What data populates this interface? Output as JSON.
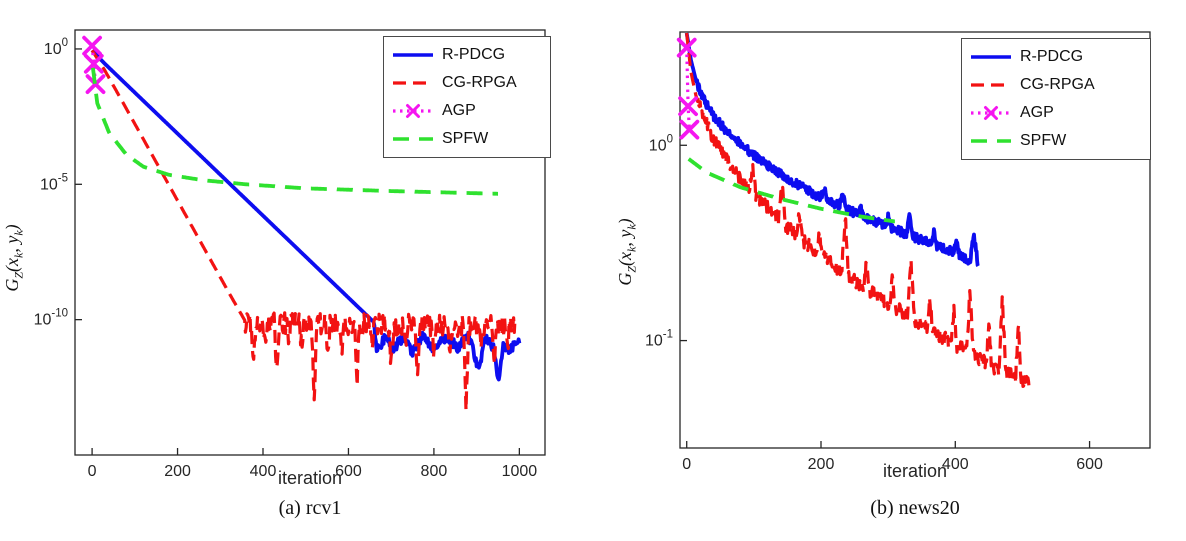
{
  "figure": {
    "captions": [
      "(a) rcv1",
      "(b) news20"
    ]
  },
  "chart_data": [
    {
      "type": "line",
      "title": "(a) rcv1",
      "xlabel": "iteration",
      "ylabel": "G_Z(x_k, y_k)",
      "ylabel_parts": {
        "g": "G",
        "gsub": "Z",
        "open": "(",
        "x": "x",
        "xsub": "k",
        "comma": ", ",
        "y": "y",
        "ysub": "k",
        "close": ")"
      },
      "grid": false,
      "x_axis": {
        "lim": [
          -40,
          1060
        ],
        "ticks": [
          0,
          200,
          400,
          600,
          800,
          1000
        ]
      },
      "y_axis": {
        "scale": "log",
        "lim_log10": [
          -15,
          0.7
        ],
        "ticks": [
          {
            "base": "10",
            "exp": "0",
            "log10": 0
          },
          {
            "base": "10",
            "exp": "-5",
            "log10": -5
          },
          {
            "base": "10",
            "exp": "-10",
            "log10": -10
          }
        ]
      },
      "legend": {
        "position": "top-right",
        "entries": [
          "R-PDCG",
          "CG-RPGA",
          "AGP",
          "SPFW"
        ]
      },
      "series": [
        {
          "name": "R-PDCG",
          "color": "#0d0df0",
          "line": "solid",
          "width": 3.8,
          "points_x_log10y": [
            [
              0,
              -0.05
            ],
            [
              30,
              -0.55
            ],
            [
              660,
              -10.1
            ],
            [
              666,
              -11.15
            ],
            [
              690,
              -10.55
            ],
            [
              705,
              -11.1
            ],
            [
              730,
              -10.6
            ],
            [
              750,
              -11.25
            ],
            [
              775,
              -10.55
            ],
            [
              800,
              -11.15
            ],
            [
              830,
              -10.6
            ],
            [
              855,
              -11.05
            ],
            [
              880,
              -10.5
            ],
            [
              905,
              -11.9
            ],
            [
              920,
              -10.7
            ],
            [
              940,
              -11.0
            ],
            [
              952,
              -12.35
            ],
            [
              962,
              -10.9
            ],
            [
              975,
              -11.1
            ],
            [
              1000,
              -10.85
            ]
          ],
          "noise": [
            [
              662,
              1000,
              0.18
            ]
          ],
          "spikes": []
        },
        {
          "name": "CG-RPGA",
          "color": "#f21212",
          "line": "dashed",
          "width": 3.2,
          "points_x_log10y": [
            [
              0,
              -0.05
            ],
            [
              30,
              -0.8
            ],
            [
              80,
              -2.2
            ],
            [
              140,
              -3.9
            ],
            [
              200,
              -5.6
            ],
            [
              260,
              -7.3
            ],
            [
              320,
              -9.0
            ],
            [
              360,
              -10.1
            ],
            [
              990,
              -10.25
            ]
          ],
          "noise": [
            [
              358,
              990,
              0.4
            ]
          ],
          "spikes": [
            [
              378,
              -1.3,
              6
            ],
            [
              405,
              -0.9,
              5
            ],
            [
              432,
              -1.5,
              6
            ],
            [
              460,
              -1.0,
              5
            ],
            [
              490,
              -0.8,
              5
            ],
            [
              520,
              -2.6,
              6
            ],
            [
              552,
              -1.0,
              5
            ],
            [
              585,
              -1.2,
              5
            ],
            [
              620,
              -2.1,
              6
            ],
            [
              655,
              -0.9,
              5
            ],
            [
              700,
              -1.5,
              6
            ],
            [
              735,
              -1.0,
              5
            ],
            [
              762,
              -1.9,
              6
            ],
            [
              800,
              -1.1,
              5
            ],
            [
              838,
              -0.9,
              5
            ],
            [
              875,
              -3.1,
              6
            ],
            [
              910,
              -1.0,
              5
            ],
            [
              942,
              -1.3,
              5
            ],
            [
              972,
              -0.9,
              5
            ]
          ]
        },
        {
          "name": "AGP",
          "color": "#f515f0",
          "line": "dotted",
          "width": 3.2,
          "marker": "x",
          "markers_x_log10y": [
            [
              0,
              0.12
            ],
            [
              4,
              -0.55
            ],
            [
              8,
              -1.3
            ]
          ]
        },
        {
          "name": "SPFW",
          "color": "#2fe12f",
          "line": "dashed",
          "width": 3.8,
          "dash": "16 10",
          "points_x_log10y": [
            [
              2,
              -0.7
            ],
            [
              12,
              -2.0
            ],
            [
              40,
              -3.1
            ],
            [
              80,
              -3.9
            ],
            [
              120,
              -4.35
            ],
            [
              180,
              -4.65
            ],
            [
              260,
              -4.85
            ],
            [
              360,
              -5.0
            ],
            [
              500,
              -5.15
            ],
            [
              700,
              -5.25
            ],
            [
              950,
              -5.35
            ]
          ],
          "noise": [],
          "spikes": []
        }
      ]
    },
    {
      "type": "line",
      "title": "(b) news20",
      "xlabel": "iteration",
      "ylabel": "G_Z(x_k, y_k)",
      "ylabel_parts": {
        "g": "G",
        "gsub": "Z",
        "open": "(",
        "x": "x",
        "xsub": "k",
        "comma": ", ",
        "y": "y",
        "ysub": "k",
        "close": ")"
      },
      "grid": false,
      "x_axis": {
        "lim": [
          -10,
          690
        ],
        "ticks": [
          0,
          200,
          400,
          600
        ]
      },
      "y_axis": {
        "scale": "log",
        "lim_log10": [
          -1.55,
          0.58
        ],
        "ticks": [
          {
            "base": "10",
            "exp": "0",
            "log10": 0
          },
          {
            "base": "10",
            "exp": "-1",
            "log10": -1
          }
        ]
      },
      "legend": {
        "position": "top-right",
        "entries": [
          "R-PDCG",
          "CG-RPGA",
          "AGP",
          "SPFW"
        ]
      },
      "series": [
        {
          "name": "R-PDCG",
          "color": "#0d0df0",
          "line": "solid",
          "width": 3.8,
          "points_x_log10y": [
            [
              0,
              0.575
            ],
            [
              6,
              0.44
            ],
            [
              14,
              0.33
            ],
            [
              25,
              0.24
            ],
            [
              40,
              0.15
            ],
            [
              60,
              0.07
            ],
            [
              85,
              -0.01
            ],
            [
              115,
              -0.09
            ],
            [
              150,
              -0.17
            ],
            [
              190,
              -0.25
            ],
            [
              230,
              -0.315
            ],
            [
              270,
              -0.375
            ],
            [
              310,
              -0.43
            ],
            [
              350,
              -0.485
            ],
            [
              385,
              -0.53
            ],
            [
              410,
              -0.565
            ],
            [
              422,
              -0.59
            ],
            [
              428,
              -0.46
            ],
            [
              434,
              -0.63
            ]
          ],
          "noise": [
            [
              15,
              434,
              0.022
            ]
          ],
          "spikes": [
            [
              205,
              0.05,
              5
            ],
            [
              232,
              0.07,
              5
            ],
            [
              258,
              0.06,
              4
            ],
            [
              300,
              0.05,
              4
            ],
            [
              332,
              0.1,
              5
            ],
            [
              368,
              0.07,
              4
            ],
            [
              402,
              0.06,
              4
            ]
          ]
        },
        {
          "name": "CG-RPGA",
          "color": "#f21212",
          "line": "dashed",
          "width": 3.2,
          "points_x_log10y": [
            [
              0,
              0.575
            ],
            [
              6,
              0.38
            ],
            [
              14,
              0.25
            ],
            [
              25,
              0.14
            ],
            [
              40,
              0.03
            ],
            [
              60,
              -0.08
            ],
            [
              85,
              -0.19
            ],
            [
              115,
              -0.3
            ],
            [
              150,
              -0.42
            ],
            [
              190,
              -0.54
            ],
            [
              230,
              -0.645
            ],
            [
              270,
              -0.74
            ],
            [
              310,
              -0.83
            ],
            [
              350,
              -0.915
            ],
            [
              390,
              -1.0
            ],
            [
              430,
              -1.08
            ],
            [
              465,
              -1.15
            ],
            [
              490,
              -1.19
            ],
            [
              510,
              -1.21
            ]
          ],
          "noise": [
            [
              15,
              510,
              0.035
            ]
          ],
          "spikes": [
            [
              98,
              0.12,
              5
            ],
            [
              142,
              0.2,
              5
            ],
            [
              168,
              0.13,
              4
            ],
            [
              198,
              0.12,
              4
            ],
            [
              236,
              0.3,
              5
            ],
            [
              268,
              0.16,
              4
            ],
            [
              306,
              0.14,
              4
            ],
            [
              334,
              0.27,
              5
            ],
            [
              362,
              0.16,
              4
            ],
            [
              398,
              0.18,
              4
            ],
            [
              422,
              0.32,
              5
            ],
            [
              450,
              0.2,
              4
            ],
            [
              470,
              0.37,
              5
            ],
            [
              494,
              0.3,
              4
            ]
          ]
        },
        {
          "name": "AGP",
          "color": "#f515f0",
          "line": "dotted",
          "width": 3.2,
          "marker": "x",
          "markers_x_log10y": [
            [
              0,
              0.5
            ],
            [
              2,
              0.2
            ],
            [
              4,
              0.08
            ]
          ]
        },
        {
          "name": "SPFW",
          "color": "#2fe12f",
          "line": "dashed",
          "width": 3.8,
          "dash": "16 10",
          "points_x_log10y": [
            [
              3,
              -0.07
            ],
            [
              30,
              -0.14
            ],
            [
              80,
              -0.215
            ],
            [
              140,
              -0.275
            ],
            [
              200,
              -0.325
            ],
            [
              260,
              -0.365
            ],
            [
              310,
              -0.39
            ]
          ],
          "noise": [],
          "spikes": []
        }
      ]
    }
  ]
}
